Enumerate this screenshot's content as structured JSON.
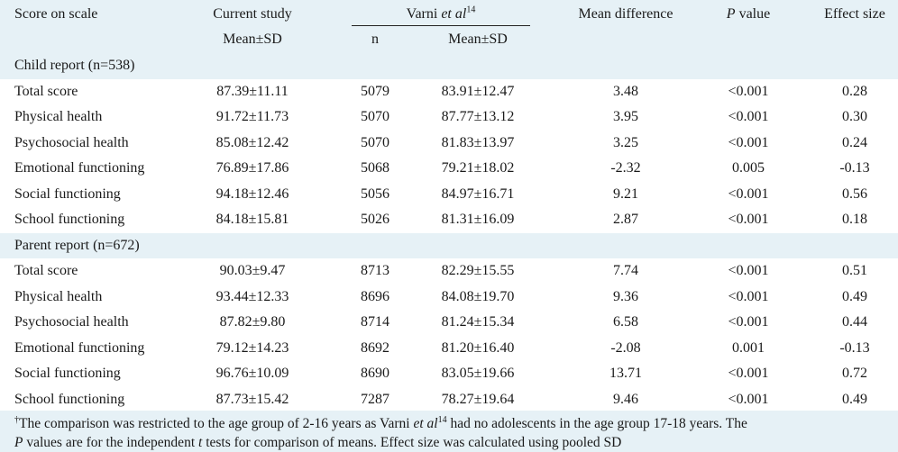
{
  "header": {
    "score_on_scale": "Score on scale",
    "current_study": "Current study",
    "current_study_sub": "Mean±SD",
    "varni_prefix": "Varni ",
    "varni_etal": "et al",
    "varni_sup": "14",
    "varni_n": "n",
    "varni_mean_sd": "Mean±SD",
    "mean_difference": "Mean difference",
    "p_value_italic": "P",
    "p_value_rest": " value",
    "effect_size": "Effect size"
  },
  "sections": [
    {
      "title": "Child report (n=538)",
      "rows": [
        {
          "label": "Total score",
          "current": "87.39±11.11",
          "n": "5079",
          "varni": "83.91±12.47",
          "md": "3.48",
          "p": "<0.001",
          "es": "0.28"
        },
        {
          "label": "Physical health",
          "current": "91.72±11.73",
          "n": "5070",
          "varni": "87.77±13.12",
          "md": "3.95",
          "p": "<0.001",
          "es": "0.30"
        },
        {
          "label": "Psychosocial health",
          "current": "85.08±12.42",
          "n": "5070",
          "varni": "81.83±13.97",
          "md": "3.25",
          "p": "<0.001",
          "es": "0.24"
        },
        {
          "label": "Emotional functioning",
          "current": "76.89±17.86",
          "n": "5068",
          "varni": "79.21±18.02",
          "md": "-2.32",
          "p": "0.005",
          "es": "-0.13"
        },
        {
          "label": "Social functioning",
          "current": "94.18±12.46",
          "n": "5056",
          "varni": "84.97±16.71",
          "md": "9.21",
          "p": "<0.001",
          "es": "0.56"
        },
        {
          "label": "School functioning",
          "current": "84.18±15.81",
          "n": "5026",
          "varni": "81.31±16.09",
          "md": "2.87",
          "p": "<0.001",
          "es": "0.18"
        }
      ]
    },
    {
      "title": "Parent report (n=672)",
      "rows": [
        {
          "label": "Total score",
          "current": "90.03±9.47",
          "n": "8713",
          "varni": "82.29±15.55",
          "md": "7.74",
          "p": "<0.001",
          "es": "0.51"
        },
        {
          "label": "Physical health",
          "current": "93.44±12.33",
          "n": "8696",
          "varni": "84.08±19.70",
          "md": "9.36",
          "p": "<0.001",
          "es": "0.49"
        },
        {
          "label": "Psychosocial health",
          "current": "87.82±9.80",
          "n": "8714",
          "varni": "81.24±15.34",
          "md": "6.58",
          "p": "<0.001",
          "es": "0.44"
        },
        {
          "label": "Emotional functioning",
          "current": "79.12±14.23",
          "n": "8692",
          "varni": "81.20±16.40",
          "md": "-2.08",
          "p": "0.001",
          "es": "-0.13"
        },
        {
          "label": "Social functioning",
          "current": "96.76±10.09",
          "n": "8690",
          "varni": "83.05±19.66",
          "md": "13.71",
          "p": "<0.001",
          "es": "0.72"
        },
        {
          "label": "School functioning",
          "current": "87.73±15.42",
          "n": "7287",
          "varni": "78.27±19.64",
          "md": "9.46",
          "p": "<0.001",
          "es": "0.49"
        }
      ]
    }
  ],
  "footnote": {
    "dagger": "†",
    "l1_a": "The comparison was restricted to the age group of 2-16 years as Varni ",
    "l1_etal": "et al",
    "l1_sup": "14",
    "l1_b": " had no adolescents in the age group 17-18 years. The",
    "l2_p": "P",
    "l2_a": " values are for the independent ",
    "l2_t": "t",
    "l2_b": " tests for comparison of means. Effect size was calculated using pooled SD"
  }
}
